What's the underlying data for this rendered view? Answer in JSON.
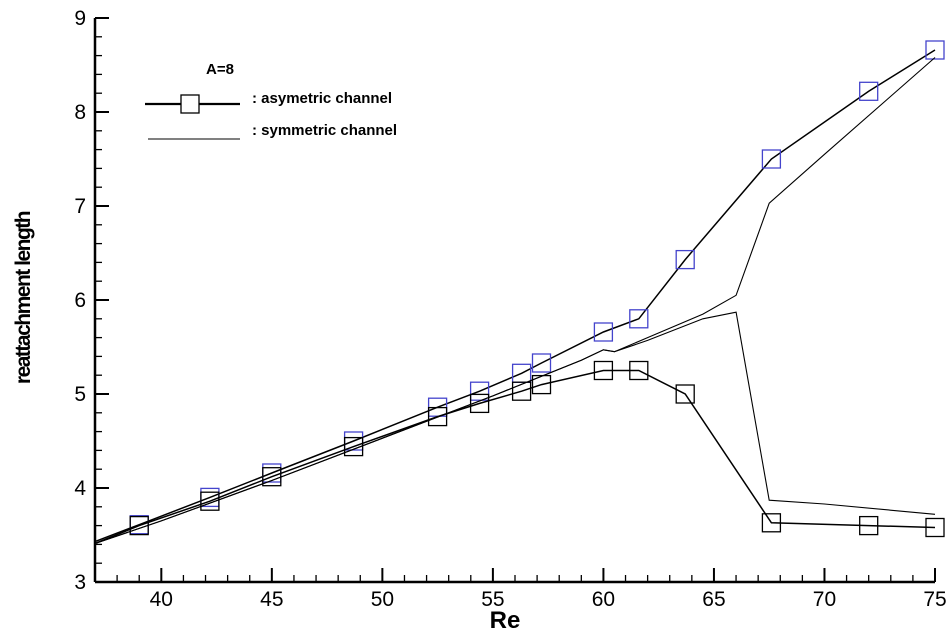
{
  "chart_data": {
    "type": "line",
    "title": "",
    "xlabel": "Re",
    "ylabel": "reattachment length",
    "xlim": [
      37,
      75
    ],
    "ylim": [
      3,
      9
    ],
    "x_ticks": [
      40,
      45,
      50,
      55,
      60,
      65,
      70,
      75
    ],
    "y_ticks": [
      3,
      4,
      5,
      6,
      7,
      8,
      9
    ],
    "grid": false,
    "legend_position": "top-left",
    "legend_title": "A=8",
    "legend": [
      {
        "label": ": asymetric channel",
        "style": "thick line with square marker"
      },
      {
        "label": ": symmetric channel",
        "style": "thin line"
      }
    ],
    "series": [
      {
        "group": "asymetric channel",
        "branch": "upper",
        "marker": "square",
        "marker_color": "#4444cc",
        "x": [
          37,
          39,
          42.2,
          45,
          48.7,
          52.5,
          54.4,
          56.3,
          57.2,
          60,
          61.6,
          63.7,
          67.6,
          72,
          75
        ],
        "y": [
          3.43,
          3.61,
          3.9,
          4.16,
          4.5,
          4.86,
          5.03,
          5.22,
          5.33,
          5.66,
          5.8,
          6.43,
          7.5,
          8.22,
          8.66
        ]
      },
      {
        "group": "asymetric channel",
        "branch": "lower",
        "marker": "square",
        "marker_color": "#000000",
        "x": [
          37,
          39,
          42.2,
          45,
          48.7,
          52.5,
          54.4,
          56.3,
          57.2,
          60,
          61.6,
          63.7,
          67.6,
          72,
          75
        ],
        "y": [
          3.41,
          3.6,
          3.86,
          4.12,
          4.44,
          4.76,
          4.9,
          5.03,
          5.1,
          5.25,
          5.25,
          5.0,
          3.63,
          3.6,
          3.58
        ]
      },
      {
        "group": "symmetric channel",
        "branch": "upper",
        "marker": "none",
        "x": [
          37,
          40,
          45,
          50,
          55,
          59,
          60,
          60.5,
          62,
          64.5,
          66,
          67.5,
          70,
          75
        ],
        "y": [
          3.41,
          3.65,
          4.08,
          4.53,
          4.98,
          5.36,
          5.47,
          5.45,
          5.6,
          5.85,
          6.05,
          7.03,
          7.55,
          8.58
        ]
      },
      {
        "group": "symmetric channel",
        "branch": "lower",
        "marker": "none",
        "x": [
          37,
          40,
          45,
          50,
          55,
          59,
          60,
          60.5,
          62,
          64.5,
          66,
          67.5,
          70,
          75
        ],
        "y": [
          3.41,
          3.65,
          4.08,
          4.53,
          4.98,
          5.36,
          5.47,
          5.45,
          5.57,
          5.8,
          5.87,
          3.87,
          3.83,
          3.72
        ]
      }
    ]
  }
}
